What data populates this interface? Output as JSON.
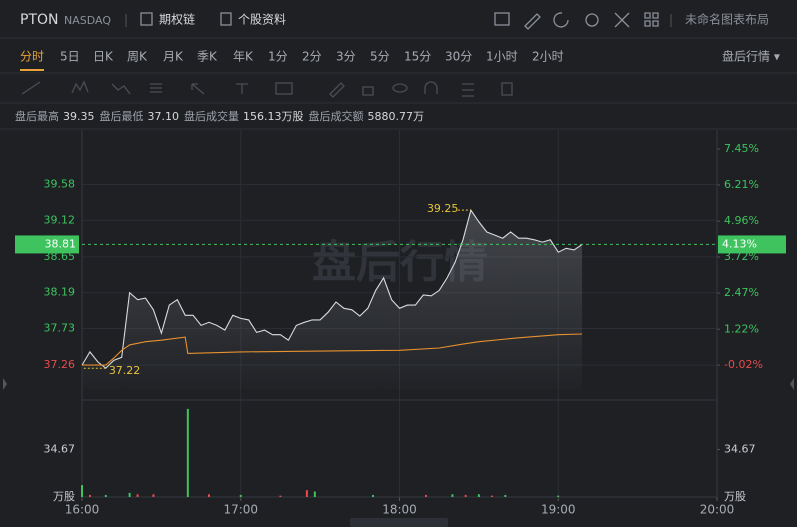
{
  "header": {
    "symbol": "PTON",
    "exchange": "NASDAQ",
    "options": "期权链",
    "profile": "个股资料",
    "layout": "未命名图表布局"
  },
  "toolbar": {
    "periods": [
      "分时",
      "5日",
      "日K",
      "周K",
      "月K",
      "季K",
      "年K",
      "1分",
      "2分",
      "3分",
      "5分",
      "15分",
      "30分",
      "1小时",
      "2小时"
    ],
    "mode": "盘后行情 ▾"
  },
  "stats": [
    {
      "label": "盘后最高",
      "value": "39.35"
    },
    {
      "label": "盘后最低",
      "value": "37.10"
    },
    {
      "label": "盘后成交量",
      "value": "156.13万股"
    },
    {
      "label": "盘后成交额",
      "value": "5880.77万"
    }
  ],
  "chart_data": {
    "type": "line",
    "watermark": "盘后行情",
    "xlim": [
      "16:00",
      "20:00"
    ],
    "xticks": [
      "16:00",
      "17:00",
      "18:00",
      "19:00",
      "20:00"
    ],
    "ylim": [
      36.94,
      40.28
    ],
    "yticks": [
      37.26,
      37.73,
      38.19,
      38.65,
      39.12,
      39.58
    ],
    "y2lim": [
      -0.88,
      8.11
    ],
    "y2ticks": [
      {
        "value": -0.02,
        "label": "-0.02%"
      },
      {
        "value": 1.22,
        "label": "1.22%"
      },
      {
        "value": 2.47,
        "label": "2.47%"
      },
      {
        "value": 3.72,
        "label": "3.72%"
      },
      {
        "value": 4.96,
        "label": "4.96%"
      },
      {
        "value": 6.21,
        "label": "6.21%"
      },
      {
        "value": 7.45,
        "label": "7.45%"
      }
    ],
    "up_color": "#3ec35f",
    "down_color": "#e84a4a",
    "grid": true,
    "last_price": 38.81,
    "last_change_label": "4.13%",
    "series": [
      {
        "color": "#d8dade",
        "x": [
          "16:00",
          "16:03",
          "16:06",
          "16:09",
          "16:12",
          "16:15",
          "16:18",
          "16:21",
          "16:24",
          "16:27",
          "16:30",
          "16:33",
          "16:36",
          "16:39",
          "16:42",
          "16:45",
          "16:48",
          "16:51",
          "16:54",
          "16:57",
          "17:00",
          "17:03",
          "17:06",
          "17:09",
          "17:12",
          "17:15",
          "17:18",
          "17:21",
          "17:24",
          "17:27",
          "17:30",
          "17:33",
          "17:36",
          "17:39",
          "17:42",
          "17:45",
          "17:48",
          "17:51",
          "17:54",
          "17:57",
          "18:00",
          "18:03",
          "18:06",
          "18:09",
          "18:12",
          "18:15",
          "18:18",
          "18:21",
          "18:24",
          "18:27",
          "18:30",
          "18:33",
          "18:36",
          "18:39",
          "18:42",
          "18:45",
          "18:48",
          "18:51",
          "18:54",
          "18:57",
          "19:00",
          "19:03",
          "19:06",
          "19:09"
        ],
        "values": [
          37.26,
          37.43,
          37.3,
          37.22,
          37.32,
          37.36,
          38.19,
          38.1,
          38.12,
          37.97,
          37.67,
          38.03,
          38.1,
          37.9,
          37.9,
          37.77,
          37.81,
          37.77,
          37.71,
          37.9,
          37.86,
          37.84,
          37.68,
          37.71,
          37.65,
          37.65,
          37.58,
          37.77,
          37.81,
          37.84,
          37.84,
          37.94,
          38.07,
          37.99,
          37.97,
          37.89,
          37.99,
          38.22,
          38.38,
          38.1,
          37.99,
          38.03,
          38.03,
          38.16,
          38.15,
          38.22,
          38.38,
          38.58,
          38.87,
          39.25,
          39.1,
          38.97,
          38.93,
          38.89,
          38.97,
          38.89,
          38.89,
          38.87,
          38.84,
          38.87,
          38.71,
          38.76,
          38.74,
          38.81
        ]
      },
      {
        "color": "#e8912f",
        "x": [
          "16:00",
          "16:06",
          "16:09",
          "16:12",
          "16:15",
          "16:18",
          "16:24",
          "16:30",
          "16:39",
          "16:40",
          "17:00",
          "17:30",
          "18:00",
          "18:15",
          "18:24",
          "18:30",
          "18:45",
          "19:00",
          "19:09"
        ],
        "values": [
          37.26,
          37.26,
          37.26,
          37.35,
          37.45,
          37.52,
          37.56,
          37.58,
          37.62,
          37.41,
          37.43,
          37.44,
          37.45,
          37.48,
          37.53,
          37.56,
          37.61,
          37.65,
          37.66
        ]
      }
    ],
    "annotations": [
      {
        "x": "16:09",
        "y": 37.22
      },
      {
        "x": "18:27",
        "y": 39.25
      }
    ],
    "volume": {
      "ylim": [
        0,
        70.06
      ],
      "yticks": [
        34.67
      ],
      "unit": "万股",
      "x": [
        "16:00",
        "16:03",
        "16:09",
        "16:18",
        "16:21",
        "16:27",
        "16:40",
        "16:48",
        "17:00",
        "17:15",
        "17:25",
        "17:28",
        "17:50",
        "18:10",
        "18:20",
        "18:25",
        "18:30",
        "18:35",
        "18:40",
        "19:00"
      ],
      "values": [
        8.7,
        1.5,
        1.5,
        3,
        2,
        2,
        64.3,
        2,
        1.5,
        1,
        5,
        4,
        1.5,
        1.5,
        2,
        1.5,
        2,
        1,
        1.5,
        1
      ],
      "colors": [
        "#3ec35f",
        "#e84a4a",
        "#3ec35f",
        "#3ec35f",
        "#e84a4a",
        "#e84a4a",
        "#3ec35f",
        "#e84a4a",
        "#3ec35f",
        "#e84a4a",
        "#e84a4a",
        "#3ec35f",
        "#3ec35f",
        "#e84a4a",
        "#3ec35f",
        "#e84a4a",
        "#3ec35f",
        "#e84a4a",
        "#3ec35f",
        "#3ec35f"
      ]
    }
  }
}
